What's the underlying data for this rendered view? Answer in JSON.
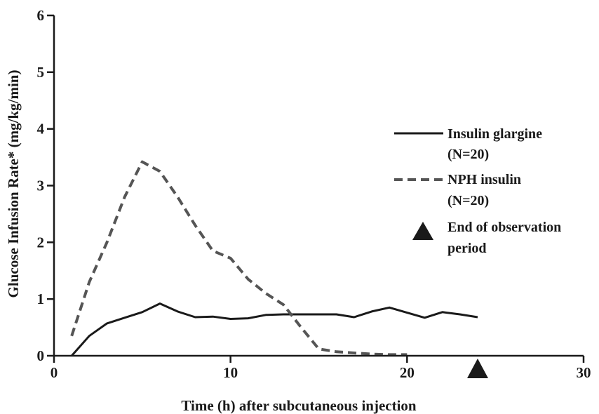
{
  "chart_data": {
    "type": "line",
    "xlabel": "Time (h) after subcutaneous injection",
    "ylabel": "Glucose Infusion Rate* (mg/kg/min)",
    "xlim": [
      0,
      30
    ],
    "ylim": [
      0,
      6
    ],
    "x_ticks": [
      "0",
      "10",
      "20",
      "30"
    ],
    "y_ticks": [
      "0",
      "1",
      "2",
      "3",
      "4",
      "5",
      "6"
    ],
    "grid": false,
    "legend_position": "right",
    "series": [
      {
        "name": "Insulin glargine",
        "name_line2": "(N=20)",
        "style": "solid",
        "color": "#1a1a1a",
        "points": [
          [
            1,
            0.0
          ],
          [
            2,
            0.35
          ],
          [
            3,
            0.57
          ],
          [
            4,
            0.67
          ],
          [
            5,
            0.77
          ],
          [
            6,
            0.92
          ],
          [
            7,
            0.78
          ],
          [
            8,
            0.68
          ],
          [
            9,
            0.69
          ],
          [
            10,
            0.65
          ],
          [
            11,
            0.66
          ],
          [
            12,
            0.72
          ],
          [
            13,
            0.73
          ],
          [
            14,
            0.73
          ],
          [
            15,
            0.73
          ],
          [
            16,
            0.73
          ],
          [
            17,
            0.68
          ],
          [
            18,
            0.78
          ],
          [
            19,
            0.85
          ],
          [
            20,
            0.76
          ],
          [
            21,
            0.67
          ],
          [
            22,
            0.77
          ],
          [
            23,
            0.73
          ],
          [
            24,
            0.68
          ]
        ]
      },
      {
        "name": "NPH insulin",
        "name_line2": "(N=20)",
        "style": "dashed",
        "color": "#555555",
        "points": [
          [
            1,
            0.35
          ],
          [
            2,
            1.3
          ],
          [
            3,
            2.0
          ],
          [
            4,
            2.8
          ],
          [
            5,
            3.42
          ],
          [
            6,
            3.25
          ],
          [
            7,
            2.8
          ],
          [
            8,
            2.3
          ],
          [
            9,
            1.85
          ],
          [
            10,
            1.72
          ],
          [
            11,
            1.35
          ],
          [
            12,
            1.1
          ],
          [
            13,
            0.9
          ],
          [
            14,
            0.5
          ],
          [
            15,
            0.12
          ],
          [
            16,
            0.07
          ],
          [
            17,
            0.05
          ],
          [
            18,
            0.03
          ],
          [
            19,
            0.02
          ],
          [
            20,
            0.02
          ]
        ]
      }
    ],
    "annotations": [
      {
        "label": "End of observation",
        "label_line2": "period",
        "marker": "triangle",
        "x": 24,
        "y": 0,
        "color": "#1a1a1a"
      }
    ]
  }
}
